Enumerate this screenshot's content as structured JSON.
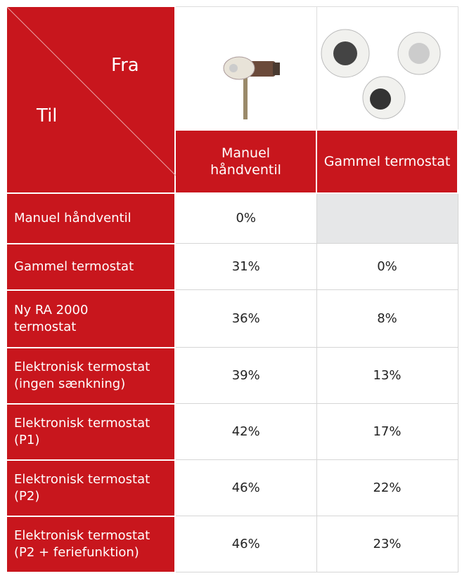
{
  "header": {
    "from": "Fra",
    "to": "Til",
    "columns": [
      "Manuel\nhåndventil",
      "Gammel termostat"
    ]
  },
  "table": {
    "rows": [
      [
        "Manuel håndventil",
        "0%",
        null
      ],
      [
        "Gammel termostat",
        "31%",
        "0%"
      ],
      [
        "Ny RA 2000\ntermostat",
        "36%",
        "8%"
      ],
      [
        "Elektronisk termostat\n(ingen sænkning)",
        "39%",
        "13%"
      ],
      [
        "Elektronisk termostat\n(P1)",
        "42%",
        "17%"
      ],
      [
        "Elektronisk termostat\n(P2)",
        "46%",
        "22%"
      ],
      [
        "Elektronisk termostat\n(P2 + feriefunktion)",
        "46%",
        "23%"
      ]
    ]
  }
}
